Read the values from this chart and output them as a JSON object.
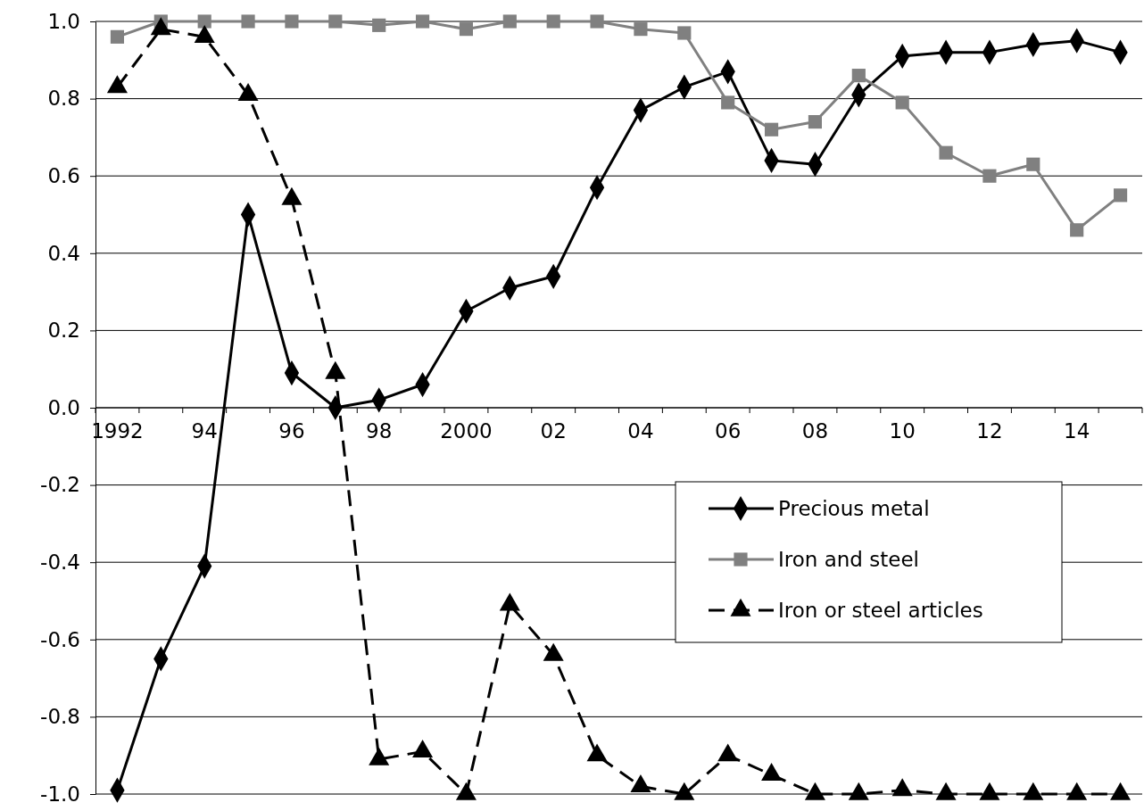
{
  "chart_data": {
    "type": "line",
    "categories": [
      "1992",
      null,
      "94",
      null,
      "96",
      null,
      "98",
      null,
      "2000",
      null,
      "02",
      null,
      "04",
      null,
      "06",
      null,
      "08",
      null,
      "10",
      null,
      "12",
      null,
      "14",
      null
    ],
    "series": [
      {
        "name": "Precious metal",
        "color": "#000000",
        "marker": "diamond",
        "line_style": "solid",
        "values": [
          -0.99,
          -0.65,
          -0.41,
          0.5,
          0.09,
          0.0,
          0.02,
          0.06,
          0.25,
          0.31,
          0.34,
          0.57,
          0.77,
          0.83,
          0.87,
          0.64,
          0.63,
          0.81,
          0.91,
          0.92,
          0.92,
          0.94,
          0.95,
          0.92
        ]
      },
      {
        "name": "Iron and steel",
        "color": "#808080",
        "marker": "square",
        "line_style": "solid",
        "values": [
          0.96,
          1.0,
          1.0,
          1.0,
          1.0,
          1.0,
          0.99,
          1.0,
          0.98,
          1.0,
          1.0,
          1.0,
          0.98,
          0.97,
          0.79,
          0.72,
          0.74,
          0.86,
          0.79,
          0.66,
          0.6,
          0.63,
          0.46,
          0.55
        ]
      },
      {
        "name": "Iron or steel articles",
        "color": "#000000",
        "marker": "triangle",
        "line_style": "dashed",
        "values": [
          0.83,
          0.98,
          0.96,
          0.81,
          0.54,
          0.09,
          -0.91,
          -0.89,
          -1.0,
          -0.51,
          -0.64,
          -0.9,
          -0.98,
          -1.0,
          -0.9,
          -0.95,
          -1.0,
          -1.0,
          -0.99,
          -1.0,
          -1.0,
          -1.0,
          -1.0,
          -1.0
        ]
      }
    ],
    "ylim": [
      -1.0,
      1.0
    ],
    "yticks": [
      {
        "value": -1,
        "label": "-1.0"
      },
      {
        "value": -0.8,
        "label": "-0.8"
      },
      {
        "value": -0.6,
        "label": "-0.6"
      },
      {
        "value": -0.4,
        "label": "-0.4"
      },
      {
        "value": -0.2,
        "label": "-0.2"
      },
      {
        "value": 0,
        "label": "0.0"
      },
      {
        "value": 0.2,
        "label": "0.2"
      },
      {
        "value": 0.4,
        "label": "0.4"
      },
      {
        "value": 0.6,
        "label": "0.6"
      },
      {
        "value": 0.8,
        "label": "0.8"
      },
      {
        "value": 1,
        "label": "1.0"
      }
    ],
    "grid": "y",
    "legend": "right"
  }
}
